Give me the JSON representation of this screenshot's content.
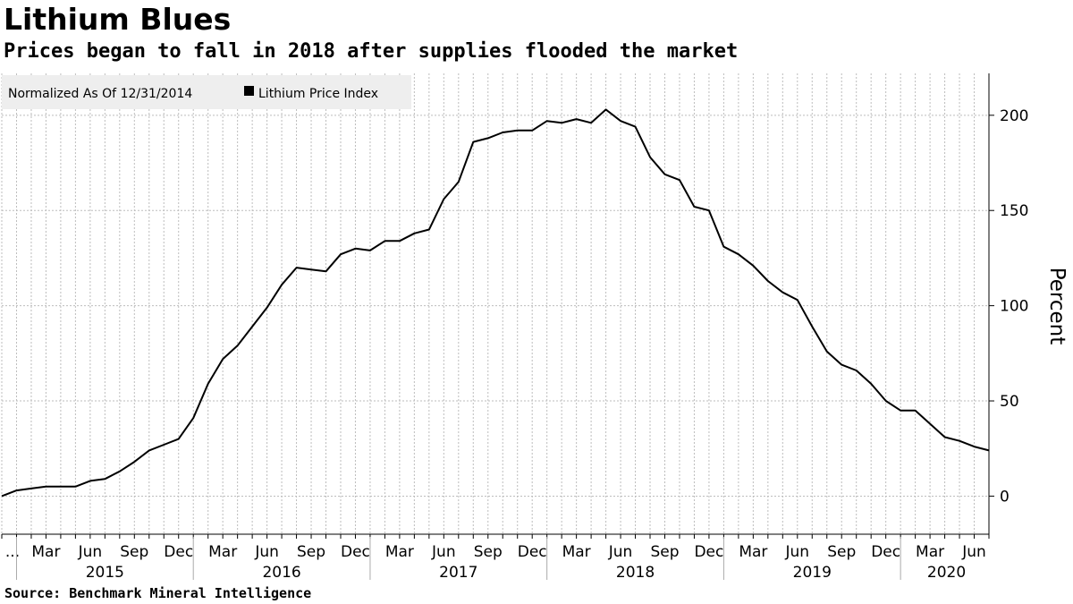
{
  "header": {
    "title": "Lithium Blues",
    "subtitle": "Prices began to fall in 2018 after supplies flooded the market"
  },
  "footer": {
    "source": "Source:  Benchmark Mineral Intelligence"
  },
  "legend": {
    "note": "Normalized As Of 12/31/2014",
    "series_label": "Lithium Price Index",
    "placement": "top-left"
  },
  "colors": {
    "line": "#000000",
    "grid": "#bdbdbd",
    "legend_bg": "#eeeeee"
  },
  "chart_data": {
    "type": "line",
    "title": "Lithium Blues",
    "subtitle": "Prices began to fall in 2018 after supplies flooded the market",
    "ylabel": "Percent",
    "xlabel": "",
    "ylim": [
      -20,
      222
    ],
    "yticks": [
      0,
      50,
      100,
      150,
      200
    ],
    "y_axis_side": "right",
    "grid": true,
    "x_tick_labels": [
      "...",
      "Mar",
      "Jun",
      "Sep",
      "Dec",
      "Mar",
      "Jun",
      "Sep",
      "Dec",
      "Mar",
      "Jun",
      "Sep",
      "Dec",
      "Mar",
      "Jun",
      "Sep",
      "Dec",
      "Mar",
      "Jun",
      "Sep",
      "Dec",
      "Mar",
      "Jun"
    ],
    "years": [
      "2015",
      "2016",
      "2017",
      "2018",
      "2019",
      "2020"
    ],
    "x_start": "2014-12",
    "x_end": "2020-07",
    "series": [
      {
        "name": "Lithium Price Index",
        "x": [
          "2014-12",
          "2015-01",
          "2015-02",
          "2015-03",
          "2015-04",
          "2015-05",
          "2015-06",
          "2015-07",
          "2015-08",
          "2015-09",
          "2015-10",
          "2015-11",
          "2015-12",
          "2016-01",
          "2016-02",
          "2016-03",
          "2016-04",
          "2016-05",
          "2016-06",
          "2016-07",
          "2016-08",
          "2016-09",
          "2016-10",
          "2016-11",
          "2016-12",
          "2017-01",
          "2017-02",
          "2017-03",
          "2017-04",
          "2017-05",
          "2017-06",
          "2017-07",
          "2017-08",
          "2017-09",
          "2017-10",
          "2017-11",
          "2017-12",
          "2018-01",
          "2018-02",
          "2018-03",
          "2018-04",
          "2018-05",
          "2018-06",
          "2018-07",
          "2018-08",
          "2018-09",
          "2018-10",
          "2018-11",
          "2018-12",
          "2019-01",
          "2019-02",
          "2019-03",
          "2019-04",
          "2019-05",
          "2019-06",
          "2019-07",
          "2019-08",
          "2019-09",
          "2019-10",
          "2019-11",
          "2019-12",
          "2020-01",
          "2020-02",
          "2020-03",
          "2020-04",
          "2020-05",
          "2020-06",
          "2020-07"
        ],
        "values": [
          0,
          3,
          4,
          5,
          5,
          5,
          8,
          9,
          13,
          18,
          24,
          27,
          30,
          41,
          59,
          72,
          79,
          89,
          99,
          111,
          120,
          119,
          118,
          127,
          130,
          129,
          134,
          134,
          138,
          140,
          156,
          165,
          186,
          188,
          191,
          192,
          192,
          197,
          196,
          198,
          196,
          203,
          197,
          194,
          178,
          169,
          166,
          152,
          150,
          131,
          127,
          121,
          113,
          107,
          103,
          89,
          76,
          69,
          66,
          59,
          50,
          45,
          45,
          38,
          31,
          29,
          26,
          24
        ]
      }
    ]
  }
}
